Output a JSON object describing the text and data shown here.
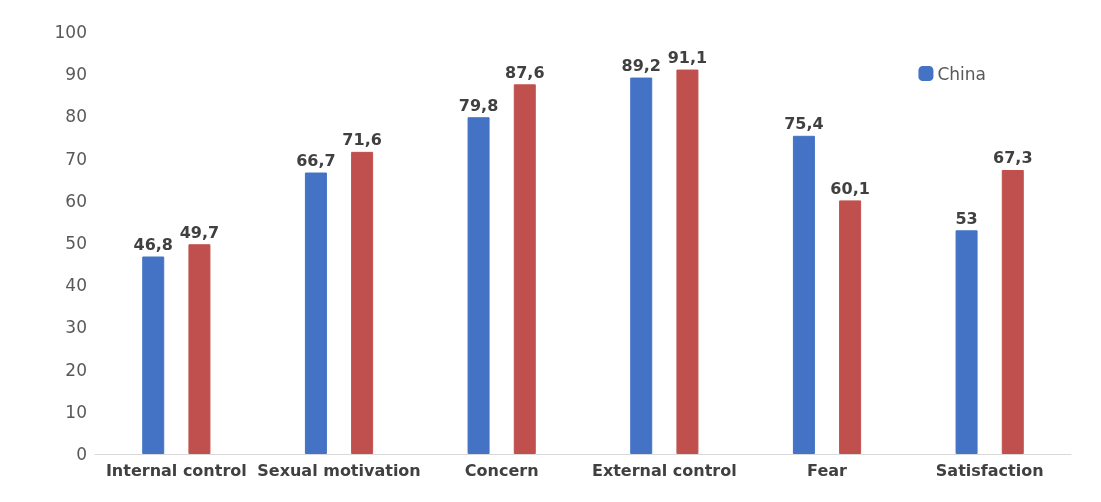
{
  "chart_data": {
    "type": "bar",
    "categories": [
      "Internal control",
      "Sexual motivation",
      "Concern",
      "External control",
      "Fear",
      "Satisfaction"
    ],
    "series": [
      {
        "name": "China",
        "color": "#4472c4",
        "values": [
          46.8,
          66.7,
          79.8,
          89.2,
          75.4,
          53
        ],
        "value_labels": [
          "46,8",
          "66,7",
          "79,8",
          "89,2",
          "75,4",
          "53"
        ]
      },
      {
        "color": "#c0504d",
        "values": [
          49.7,
          71.6,
          87.6,
          91.1,
          60.1,
          67.3
        ],
        "value_labels": [
          "49,7",
          "71,6",
          "87,6",
          "91,1",
          "60,1",
          "67,3"
        ]
      }
    ],
    "ylim": [
      0,
      100
    ],
    "yticks": [
      0,
      10,
      20,
      30,
      40,
      50,
      60,
      70,
      80,
      90,
      100
    ],
    "grid": false,
    "legend": "top right"
  }
}
